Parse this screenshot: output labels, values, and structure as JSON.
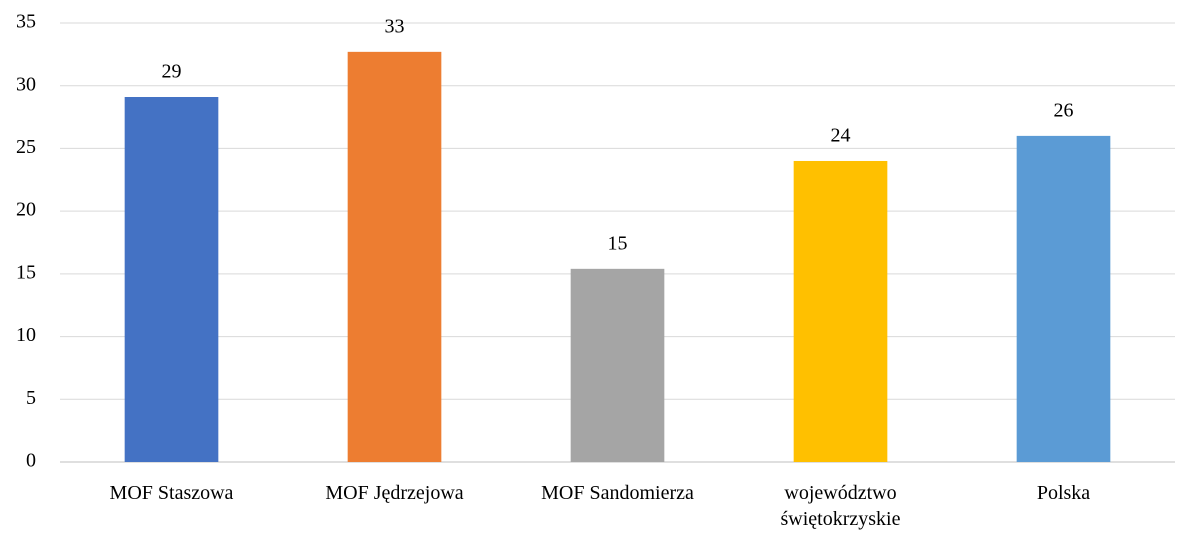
{
  "chart_data": {
    "type": "bar",
    "categories": [
      "MOF Staszowa",
      "MOF Jędrzejowa",
      "MOF Sandomierza",
      "województwo świętokrzyskie",
      "Polska"
    ],
    "values": [
      29.1,
      32.7,
      15.4,
      24.0,
      26.0
    ],
    "value_labels": [
      "29",
      "33",
      "15",
      "24",
      "26"
    ],
    "colors": [
      "#4472c4",
      "#ed7d31",
      "#a5a5a5",
      "#ffc000",
      "#5b9bd5"
    ],
    "ylim": [
      0,
      35
    ],
    "yticks": [
      0,
      5,
      10,
      15,
      20,
      25,
      30,
      35
    ],
    "grid": true
  }
}
